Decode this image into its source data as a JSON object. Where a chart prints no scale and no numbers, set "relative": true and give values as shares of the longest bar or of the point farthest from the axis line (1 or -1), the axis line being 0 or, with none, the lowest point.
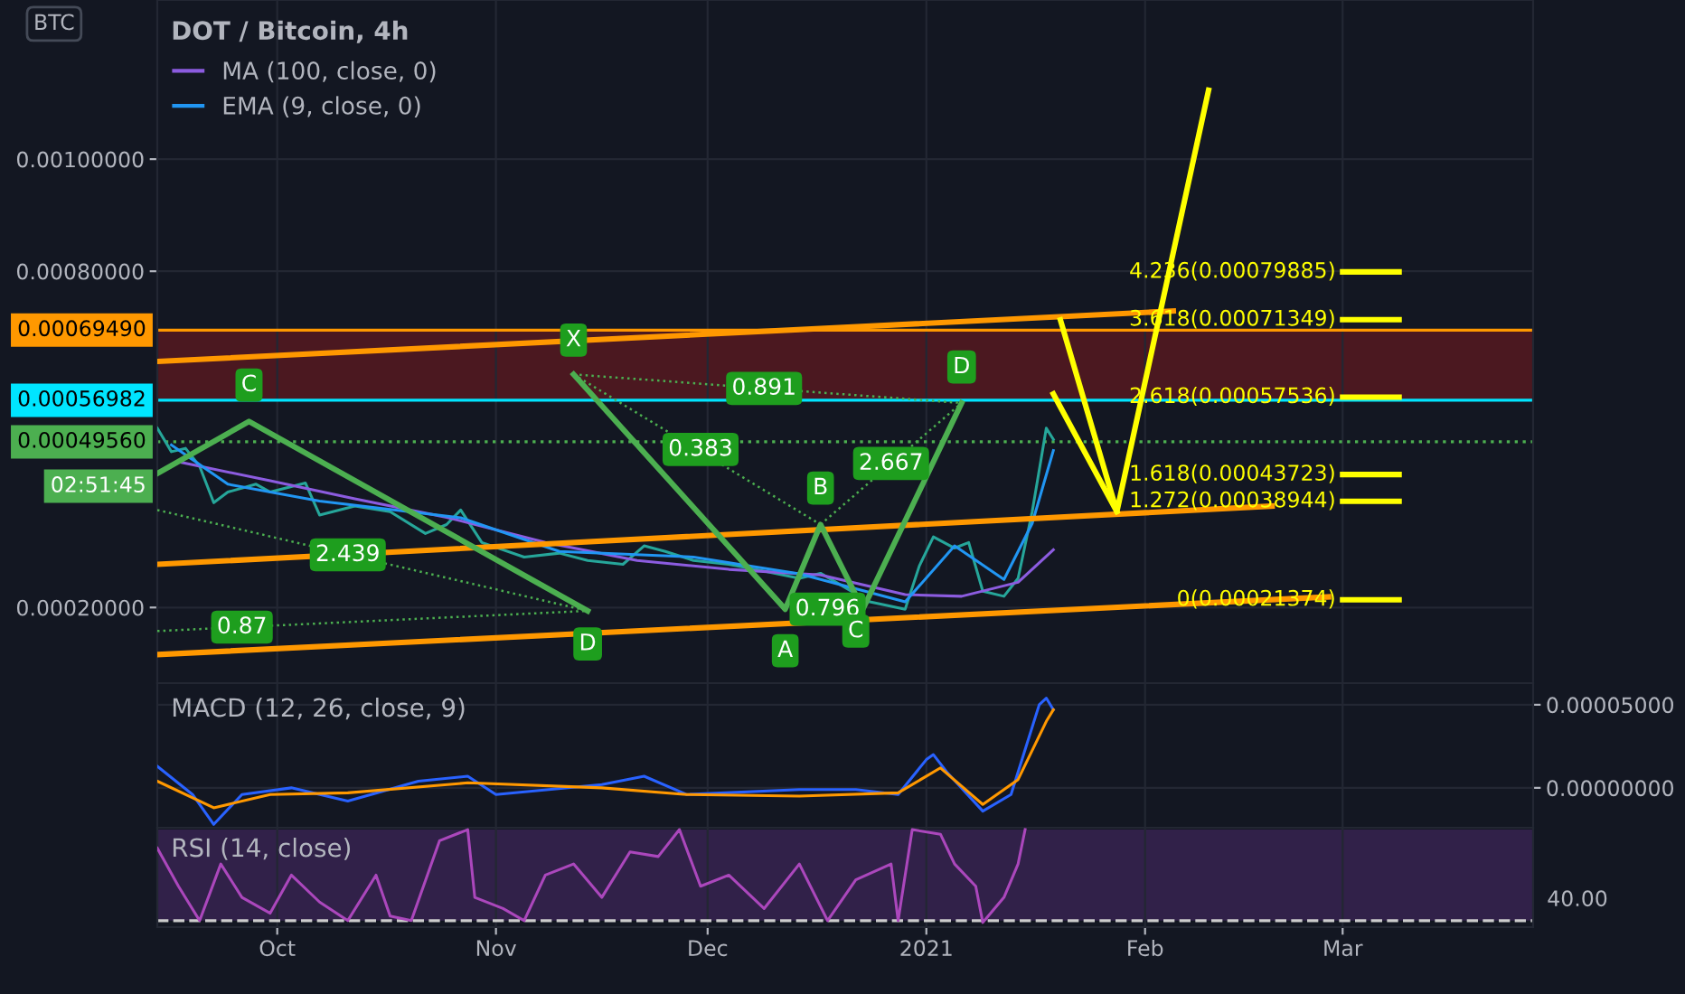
{
  "chart_data": [
    {
      "type": "line",
      "title": "DOT / Bitcoin, 4h",
      "legend": "top left",
      "grid": true,
      "tick_labels": "y",
      "xlim": [
        "2020-09-14",
        "2021-03-28"
      ],
      "ylim": [
        6.5e-05,
        0.001284
      ],
      "yticks": [
        {
          "value": 0.0002,
          "label": "0.00020000"
        },
        {
          "value": 0.0008,
          "label": "0.00080000"
        },
        {
          "value": 0.001,
          "label": "0.00100000"
        }
      ],
      "series": [
        {
          "color": "#26a69a",
          "x": [
            "2020-09-14",
            "2020-09-16",
            "2020-09-18",
            "2020-09-20",
            "2020-09-22",
            "2020-09-24",
            "2020-09-28",
            "2020-09-30",
            "2020-10-05",
            "2020-10-07",
            "2020-10-12",
            "2020-10-17",
            "2020-10-22",
            "2020-10-25",
            "2020-10-27",
            "2020-10-30",
            "2020-11-05",
            "2020-11-10",
            "2020-11-14",
            "2020-11-19",
            "2020-11-22",
            "2020-11-25",
            "2020-11-29",
            "2020-12-04",
            "2020-12-09",
            "2020-12-14",
            "2020-12-17",
            "2020-12-24",
            "2020-12-29",
            "2020-12-31",
            "2021-01-02",
            "2021-01-05",
            "2021-01-07",
            "2021-01-09",
            "2021-01-12",
            "2021-01-14",
            "2021-01-16",
            "2021-01-17",
            "2021-01-18",
            "2021-01-19"
          ],
          "values": [
            0.00052,
            0.000478,
            0.000484,
            0.000452,
            0.000387,
            0.000406,
            0.00042,
            0.000406,
            0.000422,
            0.000365,
            0.000381,
            0.000371,
            0.000332,
            0.000348,
            0.000374,
            0.000316,
            0.00029,
            0.000297,
            0.000284,
            0.000277,
            0.00031,
            0.0003,
            0.000284,
            0.000277,
            0.000265,
            0.000252,
            0.000261,
            0.00021,
            0.000197,
            0.000274,
            0.000326,
            0.000306,
            0.000316,
            0.000229,
            0.00022,
            0.000252,
            0.000371,
            0.000445,
            0.00052,
            0.0005
          ]
        },
        {
          "name": "MA (100, close, 0)",
          "color": "#8c5ce0",
          "x": [
            "2020-09-17",
            "2020-09-30",
            "2020-10-12",
            "2020-10-25",
            "2020-11-08",
            "2020-11-21",
            "2020-12-04",
            "2020-12-17",
            "2020-12-29",
            "2021-01-06",
            "2021-01-14",
            "2021-01-19"
          ],
          "values": [
            0.00046,
            0.000426,
            0.000394,
            0.000361,
            0.000316,
            0.000284,
            0.000268,
            0.000258,
            0.000223,
            0.00022,
            0.000245,
            0.000303
          ]
        },
        {
          "name": "EMA (9, close, 0)",
          "color": "#2196f3",
          "x": [
            "2020-09-16",
            "2020-09-24",
            "2020-10-07",
            "2020-10-27",
            "2020-11-10",
            "2020-11-29",
            "2020-12-14",
            "2020-12-29",
            "2021-01-05",
            "2021-01-12",
            "2021-01-16",
            "2021-01-19"
          ],
          "values": [
            0.00049,
            0.00042,
            0.00039,
            0.00036,
            0.0003,
            0.00029,
            0.00026,
            0.00021,
            0.00031,
            0.00025,
            0.00035,
            0.00048
          ]
        },
        {
          "color": "#ff9800",
          "x": [
            "2020-09-14",
            "2021-02-05"
          ],
          "values": [
            0.000639,
            0.000729
          ]
        },
        {
          "color": "#ff9800",
          "x": [
            "2020-09-14",
            "2021-02-19"
          ],
          "values": [
            0.000277,
            0.000381
          ]
        },
        {
          "color": "#ff9800",
          "x": [
            "2020-09-14",
            "2021-02-27"
          ],
          "values": [
            0.000116,
            0.000219
          ]
        },
        {
          "color": "#ffff00",
          "x": [
            "2021-01-20",
            "2021-01-28",
            "2021-02-10"
          ],
          "values": [
            0.000713,
            0.000371,
            0.001123
          ]
        },
        {
          "color": "#ffff00",
          "x": [
            "2021-01-19",
            "2021-01-28"
          ],
          "values": [
            0.000581,
            0.000371
          ]
        },
        {
          "color": "#4caf50",
          "x": [
            "2020-09-14",
            "2020-09-27",
            "2020-11-14"
          ],
          "values": [
            0.000439,
            0.000532,
            0.000194
          ]
        },
        {
          "color": "#4caf50",
          "x": [
            "2020-11-12",
            "2020-12-12",
            "2020-12-17",
            "2020-12-23",
            "2021-01-06"
          ],
          "values": [
            0.000616,
            0.000197,
            0.000348,
            0.000197,
            0.000565
          ]
        },
        {
          "color": "#4caf50",
          "line_style": "dotted",
          "x": [
            "2020-09-14",
            "2020-11-14"
          ],
          "values": [
            0.000374,
            0.000194
          ]
        },
        {
          "color": "#4caf50",
          "line_style": "dotted",
          "x": [
            "2020-09-14",
            "2020-11-14"
          ],
          "values": [
            0.000158,
            0.000194
          ]
        },
        {
          "color": "#4caf50",
          "line_style": "dotted",
          "x": [
            "2020-11-12",
            "2021-01-06"
          ],
          "values": [
            0.000616,
            0.000565
          ]
        },
        {
          "color": "#4caf50",
          "line_style": "dotted",
          "x": [
            "2020-11-12",
            "2020-12-17"
          ],
          "values": [
            0.000616,
            0.000348
          ]
        },
        {
          "color": "#4caf50",
          "line_style": "dotted",
          "x": [
            "2020-12-17",
            "2021-01-06"
          ],
          "values": [
            0.000348,
            0.000565
          ]
        },
        {
          "color": "#ffff00",
          "x": [
            "2021-03-01",
            "2021-03-09"
          ],
          "values": [
            0.00079885,
            0.00079885
          ]
        },
        {
          "color": "#ffff00",
          "x": [
            "2021-03-01",
            "2021-03-09"
          ],
          "values": [
            0.00071349,
            0.00071349
          ]
        },
        {
          "color": "#ffff00",
          "x": [
            "2021-03-01",
            "2021-03-09"
          ],
          "values": [
            0.00057536,
            0.00057536
          ]
        },
        {
          "color": "#ffff00",
          "x": [
            "2021-03-01",
            "2021-03-09"
          ],
          "values": [
            0.00043723,
            0.00043723
          ]
        },
        {
          "color": "#ffff00",
          "x": [
            "2021-03-01",
            "2021-03-09"
          ],
          "values": [
            0.00038944,
            0.00038944
          ]
        },
        {
          "color": "#ffff00",
          "x": [
            "2021-03-01",
            "2021-03-09"
          ],
          "values": [
            0.00021374,
            0.00021374
          ]
        }
      ],
      "ref_lines": [
        {
          "axis": "y",
          "value": 0.0006949,
          "label": "0.00069490",
          "color": "#ff9800"
        },
        {
          "axis": "y",
          "value": 0.00056982,
          "label": "0.00056982",
          "color": "#00e5ff"
        },
        {
          "axis": "y",
          "value": 0.0004956,
          "label": "0.00049560",
          "color": "#4caf50",
          "line_style": "dotted"
        }
      ],
      "bands": [
        {
          "axis": "y",
          "from": 0.00056982,
          "to": 0.0006949,
          "color": "#7a1a1f"
        }
      ],
      "annotations": [
        "BTC",
        "02:51:45",
        {
          "text": "C",
          "x": "2020-09-27",
          "y": 0.000597
        },
        {
          "text": "X",
          "x": "2020-11-12",
          "y": 0.000677
        },
        {
          "text": "0.891",
          "x": "2020-12-09",
          "y": 0.000591
        },
        {
          "text": "D",
          "x": "2021-01-06",
          "y": 0.000629
        },
        {
          "text": "0.383",
          "x": "2020-11-30",
          "y": 0.000482
        },
        {
          "text": "B",
          "x": "2020-12-17",
          "y": 0.000413
        },
        {
          "text": "2.667",
          "x": "2020-12-27",
          "y": 0.000457
        },
        {
          "text": "2.439",
          "x": "2020-10-11",
          "y": 0.000294
        },
        {
          "text": "0.87",
          "x": "2020-09-26",
          "y": 0.000165
        },
        {
          "text": "D",
          "x": "2020-11-14",
          "y": 0.000135
        },
        {
          "text": "A",
          "x": "2020-12-12",
          "y": 0.000123
        },
        {
          "text": "0.796",
          "x": "2020-12-18",
          "y": 0.000197
        },
        {
          "text": "C",
          "x": "2020-12-22",
          "y": 0.000158
        },
        {
          "text": "4.236(0.00079885)",
          "x": "2021-03-01",
          "y": 0.00079885
        },
        {
          "text": "3.618(0.00071349)",
          "x": "2021-03-01",
          "y": 0.00071349
        },
        {
          "text": "2.618(0.00057536)",
          "x": "2021-03-01",
          "y": 0.00057536
        },
        {
          "text": "1.618(0.00043723)",
          "x": "2021-03-01",
          "y": 0.00043723
        },
        {
          "text": "1.272(0.00038944)",
          "x": "2021-03-01",
          "y": 0.00038944
        },
        {
          "text": "0(0.00021374)",
          "x": "2021-03-01",
          "y": 0.00021374
        }
      ]
    },
    {
      "type": "line",
      "title": "MACD (12, 26, close, 9)",
      "grid": true,
      "tick_labels": "y",
      "xlim": [
        "2020-09-14",
        "2021-03-28"
      ],
      "ylim": [
        -2.4e-05,
        6.3e-05
      ],
      "yticks": [
        {
          "value": 0,
          "label": "0.00000000"
        },
        {
          "value": 5e-05,
          "label": "0.00005000"
        }
      ],
      "series": [
        {
          "color": "#2962ff",
          "x": [
            "2020-09-14",
            "2020-09-19",
            "2020-09-22",
            "2020-09-26",
            "2020-10-03",
            "2020-10-11",
            "2020-10-21",
            "2020-10-28",
            "2020-11-01",
            "2020-11-16",
            "2020-11-22",
            "2020-11-28",
            "2020-12-14",
            "2020-12-22",
            "2020-12-28",
            "2021-01-01",
            "2021-01-02",
            "2021-01-04",
            "2021-01-09",
            "2021-01-13",
            "2021-01-15",
            "2021-01-17",
            "2021-01-18",
            "2021-01-19"
          ],
          "values": [
            1.3e-05,
            -4e-06,
            -2.2e-05,
            -4e-06,
            0.0,
            -8e-06,
            4e-06,
            7e-06,
            -4e-06,
            2e-06,
            7e-06,
            -4e-06,
            -1e-06,
            -1e-06,
            -4e-06,
            1.7e-05,
            2e-05,
            9e-06,
            -1.4e-05,
            -4e-06,
            2.3e-05,
            5e-05,
            5.4e-05,
            4.7e-05
          ]
        },
        {
          "color": "#ff9800",
          "x": [
            "2020-09-14",
            "2020-09-22",
            "2020-09-30",
            "2020-10-11",
            "2020-10-28",
            "2020-11-16",
            "2020-11-28",
            "2020-12-14",
            "2020-12-28",
            "2021-01-03",
            "2021-01-09",
            "2021-01-14",
            "2021-01-18",
            "2021-01-19"
          ],
          "values": [
            4e-06,
            -1.2e-05,
            -4e-06,
            -3e-06,
            3e-06,
            0.0,
            -4e-06,
            -5e-06,
            -3e-06,
            1.2e-05,
            -1e-05,
            5e-06,
            4e-05,
            4.7e-05
          ]
        }
      ]
    },
    {
      "type": "line",
      "title": "RSI (14, close)",
      "grid": true,
      "relative": true,
      "xlim": [
        "2020-09-14",
        "2021-03-28"
      ],
      "xticks": [
        {
          "value": "2020-10-01",
          "label": "Oct"
        },
        {
          "value": "2020-11-01",
          "label": "Nov"
        },
        {
          "value": "2020-12-01",
          "label": "Dec"
        },
        {
          "value": "2021-01-01",
          "label": "2021"
        },
        {
          "value": "2021-02-01",
          "label": "Feb"
        },
        {
          "value": "2021-03-01",
          "label": "Mar"
        }
      ],
      "annotations": [
        "40.00"
      ],
      "ref_lines": [
        {
          "axis": "y",
          "value": 0.02,
          "color": "#cccccc",
          "line_style": "dashed"
        }
      ],
      "bands": [
        {
          "axis": "y",
          "from": 0.02,
          "to": 1,
          "color": "#4a2a6a"
        }
      ],
      "series": [
        {
          "color": "#ab47bc",
          "x": [
            "2020-09-14",
            "2020-09-17",
            "2020-09-20",
            "2020-09-23",
            "2020-09-26",
            "2020-09-30",
            "2020-10-03",
            "2020-10-07",
            "2020-10-11",
            "2020-10-15",
            "2020-10-17",
            "2020-10-20",
            "2020-10-24",
            "2020-10-28",
            "2020-10-29",
            "2020-11-02",
            "2020-11-05",
            "2020-11-08",
            "2020-11-12",
            "2020-11-16",
            "2020-11-20",
            "2020-11-24",
            "2020-11-27",
            "2020-11-30",
            "2020-12-04",
            "2020-12-09",
            "2020-12-14",
            "2020-12-18",
            "2020-12-22",
            "2020-12-27",
            "2020-12-28",
            "2020-12-30",
            "2021-01-03",
            "2021-01-05",
            "2021-01-08",
            "2021-01-09",
            "2021-01-12",
            "2021-01-14",
            "2021-01-15"
          ],
          "values": [
            0.8,
            0.39,
            0.02,
            0.63,
            0.27,
            0.1,
            0.51,
            0.22,
            0.02,
            0.51,
            0.07,
            0.02,
            0.88,
            1,
            0.27,
            0.15,
            0.02,
            0.51,
            0.63,
            0.27,
            0.76,
            0.71,
            1,
            0.39,
            0.51,
            0.15,
            0.63,
            0.02,
            0.46,
            0.63,
            0.02,
            1,
            0.95,
            0.63,
            0.39,
            0,
            0.27,
            0.63,
            1
          ]
        }
      ]
    }
  ]
}
